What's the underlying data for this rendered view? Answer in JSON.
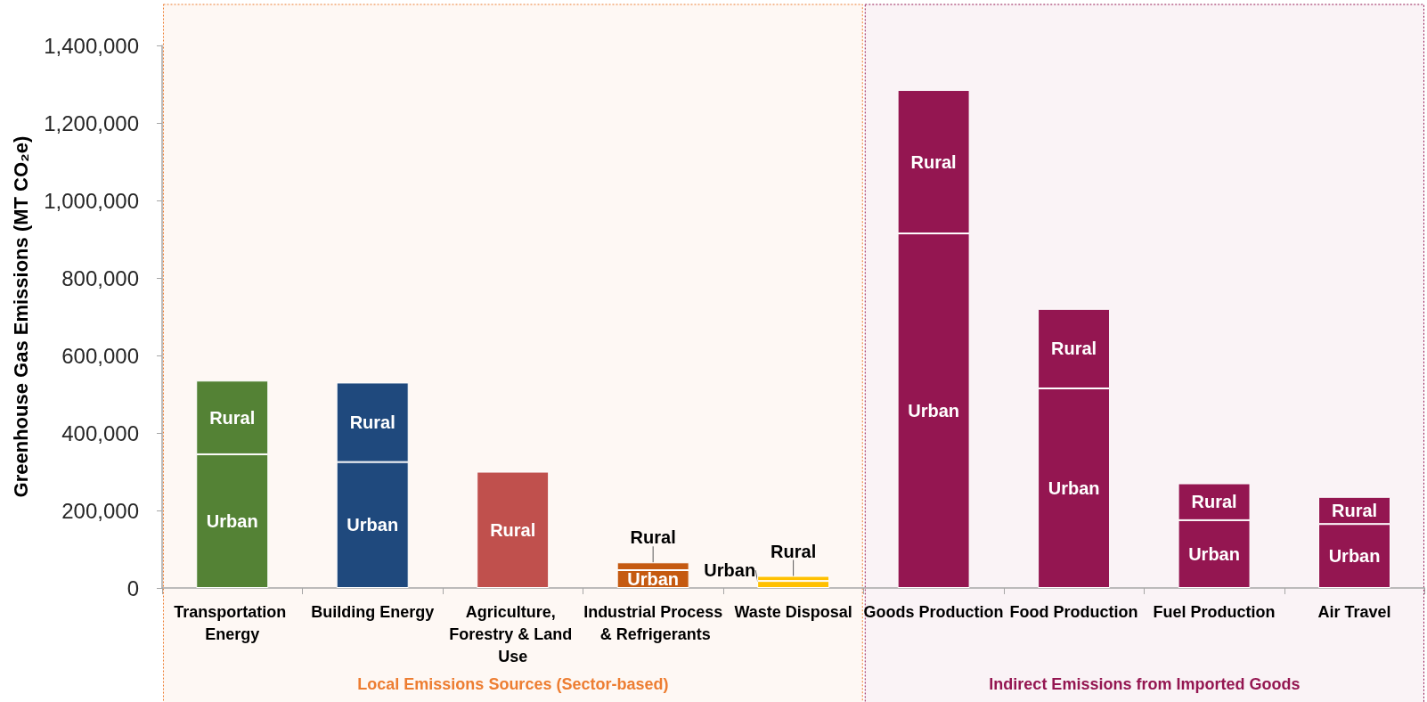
{
  "chart_data": {
    "type": "bar",
    "stacked": true,
    "ylabel": "Greenhouse Gas Emissions (MT CO₂e)",
    "categories": [
      "Transportation Energy",
      "Building Energy",
      "Agriculture, Forestry & Land Use",
      "Industrial Process & Refrigerants",
      "Waste Disposal",
      "Goods Production",
      "Food Production",
      "Fuel Production",
      "Air Travel"
    ],
    "series": [
      {
        "name": "Urban",
        "colors": [
          "#548235",
          "#1f497d",
          "#c0504d",
          "#c55a11",
          "#ffc000",
          "#941651",
          "#941651",
          "#941651",
          "#941651"
        ],
        "values": [
          345000,
          325000,
          null,
          46000,
          18000,
          915000,
          515000,
          175000,
          165000
        ]
      },
      {
        "name": "Rural",
        "colors": [
          "#548235",
          "#1f497d",
          "#c0504d",
          "#c55a11",
          "#ffc000",
          "#941651",
          "#941651",
          "#941651",
          "#941651"
        ],
        "values": [
          190000,
          205000,
          300000,
          20000,
          13000,
          370000,
          205000,
          95000,
          70000
        ]
      }
    ],
    "ylim": [
      0,
      1400000
    ],
    "yticks": [
      0,
      {
        "value": 200000,
        "label": "200,000"
      },
      {
        "value": 400000,
        "label": "400,000"
      },
      {
        "value": 600000,
        "label": "600,000"
      },
      {
        "value": 800000,
        "label": "800,000"
      },
      {
        "value": 1000000,
        "label": "1,000,000"
      },
      {
        "value": 1200000,
        "label": "1,200,000"
      },
      {
        "value": 1400000,
        "label": "1,400,000"
      }
    ],
    "grid": false,
    "legend": false,
    "bands": [
      {
        "axis": "x",
        "from": "Transportation Energy",
        "to": "Waste Disposal",
        "label": "Local Emissions Sources (Sector-based)",
        "color": "#ed7d31"
      },
      {
        "axis": "x",
        "from": "Goods Production",
        "to": "Air Travel",
        "label": "Indirect Emissions from Imported Goods",
        "color": "#941651"
      }
    ]
  }
}
